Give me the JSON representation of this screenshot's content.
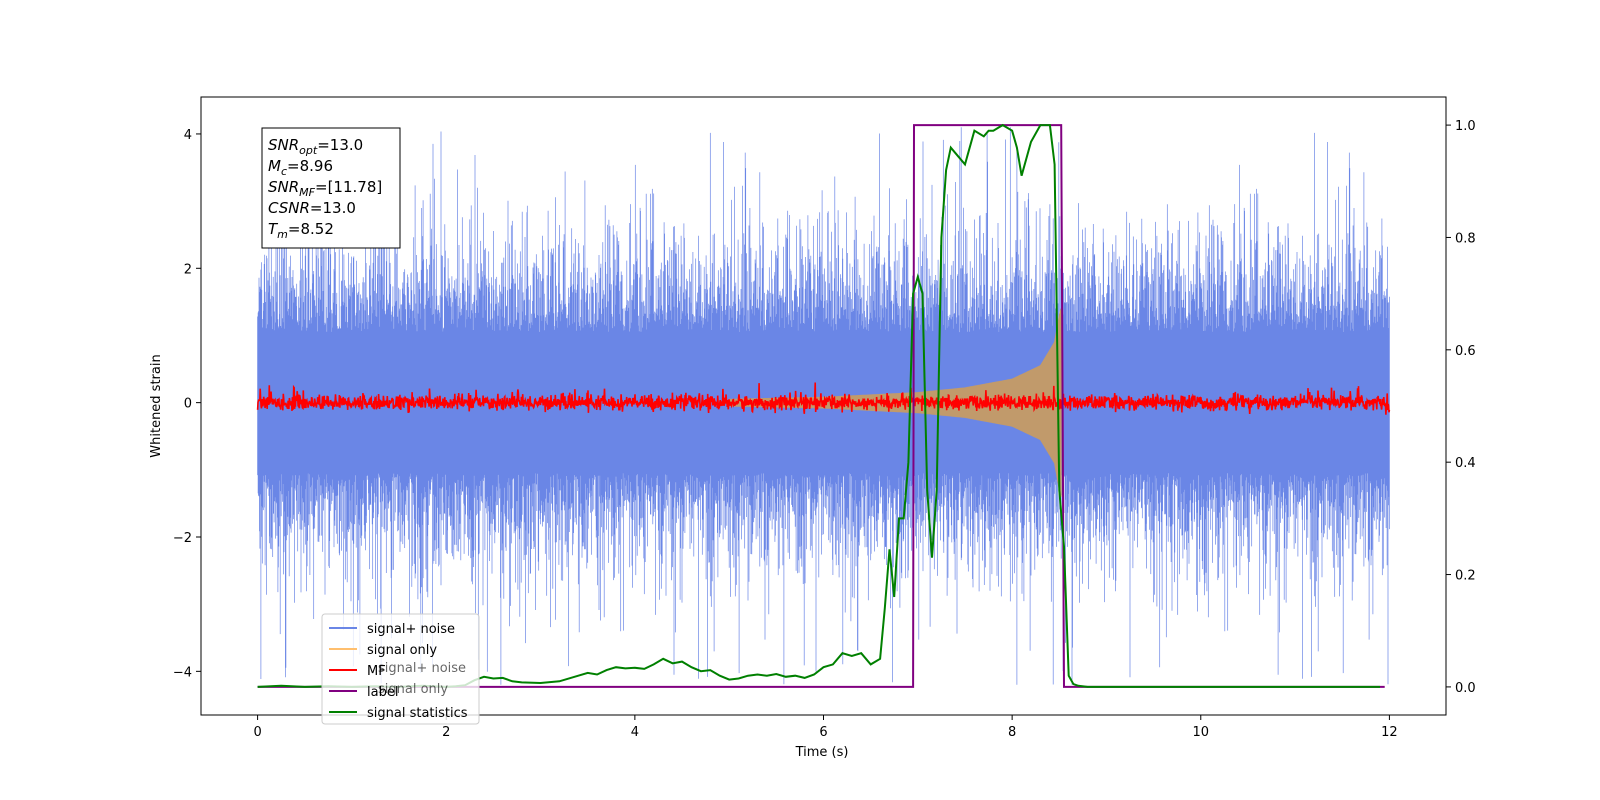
{
  "chart_data": {
    "type": "line",
    "xlabel": "Time (s)",
    "ylabel": "Whitened strain",
    "xlim": [
      -0.6,
      12.6
    ],
    "ylim": [
      -4.65,
      4.55
    ],
    "ylim_right": [
      -0.05,
      1.05
    ],
    "xticks": [
      0,
      2,
      4,
      6,
      8,
      10,
      12
    ],
    "yticks": [
      -4,
      -2,
      0,
      2,
      4
    ],
    "yticks_right": [
      0.0,
      0.2,
      0.4,
      0.6,
      0.8,
      1.0
    ],
    "xtick_labels": [
      "0",
      "2",
      "4",
      "6",
      "8",
      "10",
      "12"
    ],
    "ytick_labels": [
      "−4",
      "−2",
      "0",
      "2",
      "4"
    ],
    "ytick_right_labels": [
      "0.0",
      "0.2",
      "0.4",
      "0.6",
      "0.8",
      "1.0"
    ],
    "grid": false,
    "legend_position": "lower-left",
    "legend": [
      "signal+ noise",
      "signal only",
      "MF",
      "label",
      "signal statistics"
    ],
    "legend_ghost": [
      "signal+ noise",
      "signal only"
    ],
    "colors": {
      "noise": "#6a86e6",
      "signal": "#c19a6b",
      "signal_legend": "#ffbf6e",
      "mf": "#ff0000",
      "label": "#800080",
      "stat": "#008000"
    },
    "series": [
      {
        "name": "signal+ noise",
        "axis": "left",
        "x_range": [
          0,
          12
        ],
        "envelope": {
          "typical_min": -2.3,
          "typical_max": 2.6,
          "peak_min": -4.2,
          "peak_max": 4.1
        }
      },
      {
        "name": "signal only",
        "axis": "left",
        "chirp_start": 5.0,
        "merger_time": 8.52,
        "amplitude_points": [
          [
            5.0,
            0.05
          ],
          [
            6.0,
            0.08
          ],
          [
            7.0,
            0.15
          ],
          [
            7.5,
            0.22
          ],
          [
            8.0,
            0.35
          ],
          [
            8.3,
            0.55
          ],
          [
            8.45,
            0.9
          ],
          [
            8.5,
            1.3
          ],
          [
            8.52,
            1.4
          ]
        ]
      },
      {
        "name": "MF",
        "axis": "left",
        "x_range": [
          0,
          12
        ],
        "envelope": {
          "typical_amplitude": 0.1,
          "peak_amplitude": 0.3
        }
      },
      {
        "name": "label",
        "axis": "right",
        "x": [
          0,
          6.95,
          6.96,
          8.52,
          8.55,
          11.95
        ],
        "y": [
          0,
          0,
          1,
          1,
          0,
          0
        ]
      },
      {
        "name": "signal statistics",
        "axis": "right",
        "x": [
          0,
          0.25,
          0.5,
          0.75,
          1.0,
          1.25,
          1.5,
          1.75,
          2.0,
          2.1,
          2.2,
          2.3,
          2.4,
          2.5,
          2.6,
          2.7,
          2.8,
          3.0,
          3.2,
          3.4,
          3.5,
          3.6,
          3.7,
          3.8,
          3.9,
          4.0,
          4.1,
          4.2,
          4.3,
          4.4,
          4.5,
          4.6,
          4.7,
          4.8,
          4.9,
          5.0,
          5.1,
          5.2,
          5.3,
          5.4,
          5.5,
          5.6,
          5.7,
          5.8,
          5.9,
          6.0,
          6.1,
          6.2,
          6.3,
          6.4,
          6.5,
          6.55,
          6.6,
          6.65,
          6.7,
          6.75,
          6.8,
          6.85,
          6.9,
          6.95,
          7.0,
          7.05,
          7.1,
          7.15,
          7.2,
          7.25,
          7.3,
          7.35,
          7.4,
          7.5,
          7.6,
          7.7,
          7.75,
          7.8,
          7.9,
          8.0,
          8.05,
          8.1,
          8.2,
          8.3,
          8.4,
          8.45,
          8.5,
          8.55,
          8.6,
          8.65,
          8.7,
          8.8,
          9.0,
          10.0,
          11.0,
          11.9
        ],
        "y": [
          0.0,
          0.002,
          0.0,
          0.001,
          0.0,
          0.001,
          0.0,
          0.002,
          0.0,
          0.001,
          0.003,
          0.012,
          0.018,
          0.015,
          0.016,
          0.01,
          0.008,
          0.007,
          0.01,
          0.02,
          0.025,
          0.022,
          0.03,
          0.035,
          0.033,
          0.034,
          0.032,
          0.04,
          0.05,
          0.042,
          0.045,
          0.035,
          0.028,
          0.03,
          0.02,
          0.013,
          0.015,
          0.02,
          0.022,
          0.02,
          0.023,
          0.018,
          0.02,
          0.016,
          0.022,
          0.035,
          0.04,
          0.06,
          0.055,
          0.06,
          0.04,
          0.045,
          0.05,
          0.14,
          0.245,
          0.16,
          0.3,
          0.3,
          0.4,
          0.7,
          0.73,
          0.7,
          0.35,
          0.23,
          0.35,
          0.8,
          0.92,
          0.96,
          0.95,
          0.93,
          0.99,
          0.98,
          0.99,
          0.99,
          1.0,
          0.99,
          0.96,
          0.91,
          0.97,
          1.0,
          1.0,
          0.93,
          0.35,
          0.25,
          0.02,
          0.005,
          0.002,
          0.0,
          0.0,
          0.0,
          0.0,
          0.0
        ]
      }
    ],
    "annotation": {
      "lines": [
        {
          "var": "SNR",
          "sub": "opt",
          "value": "=13.0"
        },
        {
          "var": "M",
          "sub": "c",
          "value": "=8.96"
        },
        {
          "var": "SNR",
          "sub": "MF",
          "value": "=[11.78]"
        },
        {
          "var": "CSNR",
          "sub": "",
          "value": "=13.0"
        },
        {
          "var": "T",
          "sub": "m",
          "value": "=8.52"
        }
      ]
    }
  }
}
